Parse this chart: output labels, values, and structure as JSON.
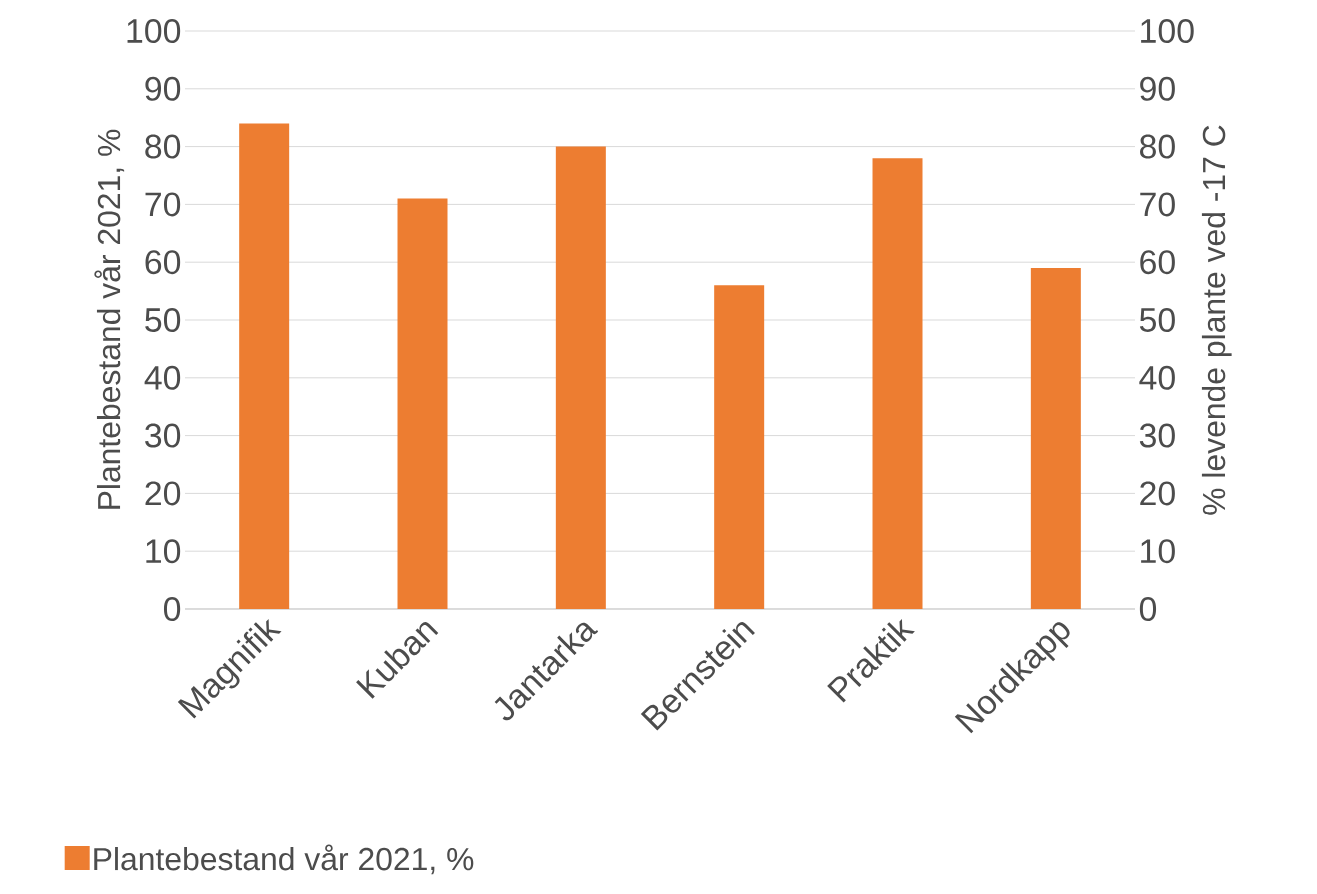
{
  "chart_data": {
    "type": "bar",
    "categories": [
      "Magnifik",
      "Kuban",
      "Jantarka",
      "Bernstein",
      "Praktik",
      "Nordkapp"
    ],
    "series": [
      {
        "name": "Plantebestand vår 2021, %",
        "color": "#ed7d31",
        "values": [
          84,
          71,
          80,
          56,
          78,
          59
        ]
      }
    ],
    "ylabel": "Plantebestand vår 2021, %",
    "y2label": "% levende plante ved -17 C",
    "ylim": [
      0,
      100
    ],
    "yticks": [
      0,
      10,
      20,
      30,
      40,
      50,
      60,
      70,
      80,
      90,
      100
    ],
    "y2lim": [
      0,
      100
    ],
    "y2ticks": [
      0,
      10,
      20,
      30,
      40,
      50,
      60,
      70,
      80,
      90,
      100
    ],
    "grid": "y",
    "legend": "bottom left"
  }
}
